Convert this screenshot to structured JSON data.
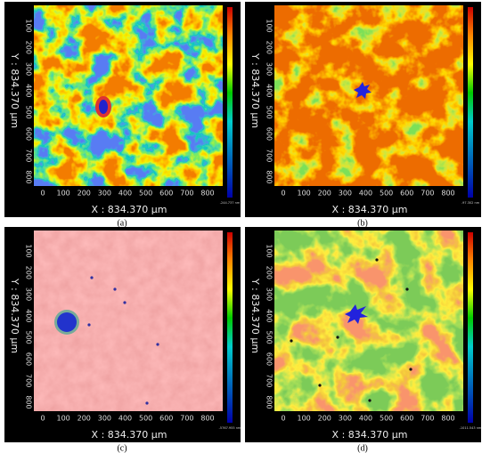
{
  "figure": {
    "panels": [
      {
        "caption": "(a)",
        "x_label": "X : 834.370 µm",
        "y_label": "Y : 834.370 µm",
        "x_ticks": [
          0,
          100,
          200,
          300,
          400,
          500,
          600,
          700,
          800
        ],
        "y_ticks": [
          100,
          200,
          300,
          400,
          500,
          600,
          700,
          800
        ],
        "scale_min": "-244.737 nm"
      },
      {
        "caption": "(b)",
        "x_label": "X : 834.370 µm",
        "y_label": "Y : 834.370 µm",
        "x_ticks": [
          0,
          100,
          200,
          300,
          400,
          500,
          600,
          700,
          800
        ],
        "y_ticks": [
          100,
          200,
          300,
          400,
          500,
          600,
          700,
          800
        ],
        "scale_min": "-97.302 nm"
      },
      {
        "caption": "(c)",
        "x_label": "X : 834.370 µm",
        "y_label": "Y : 834.370 µm",
        "x_ticks": [
          0,
          100,
          200,
          300,
          400,
          500,
          600,
          700,
          800
        ],
        "y_ticks": [
          100,
          200,
          300,
          400,
          500,
          600,
          700,
          800
        ],
        "scale_min": "-5767.955 nm"
      },
      {
        "caption": "(d)",
        "x_label": "X : 834.370 µm",
        "y_label": "Y : 834.370 µm",
        "x_ticks": [
          0,
          100,
          200,
          300,
          400,
          500,
          600,
          700,
          800
        ],
        "y_ticks": [
          100,
          200,
          300,
          400,
          500,
          600,
          700,
          800
        ],
        "scale_min": "-1011.543 nm"
      }
    ]
  }
}
